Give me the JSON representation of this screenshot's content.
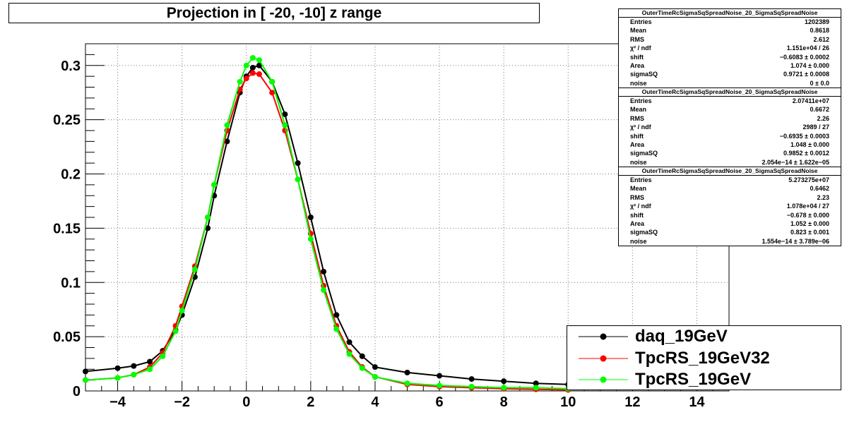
{
  "title": "Projection in [ -20, -10] z range",
  "stat_boxes": [
    {
      "name": "OuterTimeRcSigmaSqSpreadNoise_20_SigmaSqSpreadNoise",
      "rows": [
        {
          "k": "Entries",
          "v": "1202389"
        },
        {
          "k": "Mean",
          "v": "0.8618"
        },
        {
          "k": "RMS",
          "v": "2.612"
        },
        {
          "k": "χ² / ndf",
          "v": "1.151e+04 / 26"
        },
        {
          "k": "shift",
          "v": "−0.6083 ± 0.0002"
        },
        {
          "k": "Area",
          "v": "1.074 ± 0.000"
        },
        {
          "k": "sigmaSQ",
          "v": "0.9721 ± 0.0008"
        },
        {
          "k": "noise",
          "v": "0 ± 0.0"
        }
      ]
    },
    {
      "name": "OuterTimeRcSigmaSqSpreadNoise_20_SigmaSqSpreadNoise",
      "rows": [
        {
          "k": "Entries",
          "v": "2.07411e+07"
        },
        {
          "k": "Mean",
          "v": "0.6672"
        },
        {
          "k": "RMS",
          "v": "2.26"
        },
        {
          "k": "χ² / ndf",
          "v": "2989 / 27"
        },
        {
          "k": "shift",
          "v": "−0.6935 ± 0.0003"
        },
        {
          "k": "Area",
          "v": "1.048 ± 0.000"
        },
        {
          "k": "sigmaSQ",
          "v": "0.9852 ± 0.0012"
        },
        {
          "k": "noise",
          "v": "2.054e−14 ± 1.622e−05"
        }
      ]
    },
    {
      "name": "OuterTimeRcSigmaSqSpreadNoise_20_SigmaSqSpreadNoise",
      "rows": [
        {
          "k": "Entries",
          "v": "5.273275e+07"
        },
        {
          "k": "Mean",
          "v": "0.6462"
        },
        {
          "k": "RMS",
          "v": "2.23"
        },
        {
          "k": "χ² / ndf",
          "v": "1.078e+04 / 27"
        },
        {
          "k": "shift",
          "v": "−0.678 ± 0.000"
        },
        {
          "k": "Area",
          "v": "1.052 ± 0.000"
        },
        {
          "k": "sigmaSQ",
          "v": "0.823 ± 0.001"
        },
        {
          "k": "noise",
          "v": "1.554e−14 ± 3.789e−06"
        }
      ]
    }
  ],
  "legend": [
    {
      "label": "daq_19GeV",
      "color": "#000000"
    },
    {
      "label": "TpcRS_19GeV32",
      "color": "#ff0000"
    },
    {
      "label": "TpcRS_19GeV",
      "color": "#00ff00"
    }
  ],
  "chart_data": {
    "type": "scatter",
    "title": "Projection in [ -20, -10] z range",
    "xlabel": "",
    "ylabel": "",
    "xlim": [
      -5,
      15
    ],
    "ylim": [
      0,
      0.32
    ],
    "x_ticks": [
      -4,
      -2,
      0,
      2,
      4,
      6,
      8,
      10,
      12,
      14
    ],
    "y_ticks": [
      0,
      0.05,
      0.1,
      0.15,
      0.2,
      0.25,
      0.3
    ],
    "x_tick_labels": [
      "−4",
      "−2",
      "0",
      "2",
      "4",
      "6",
      "8",
      "10",
      "12",
      "14"
    ],
    "y_tick_labels": [
      "0",
      "0.05",
      "0.1",
      "0.15",
      "0.2",
      "0.25",
      "0.3"
    ],
    "grid": true,
    "legend_position": "bottom-right",
    "series": [
      {
        "name": "daq_19GeV",
        "color": "#000000",
        "x": [
          -5,
          -4,
          -3.5,
          -3,
          -2.6,
          -2.2,
          -2,
          -1.6,
          -1.2,
          -1,
          -0.6,
          -0.2,
          0,
          0.2,
          0.4,
          0.8,
          1.2,
          1.6,
          2,
          2.4,
          2.8,
          3.2,
          3.6,
          4,
          5,
          6,
          7,
          8,
          9,
          10
        ],
        "y": [
          0.018,
          0.021,
          0.023,
          0.027,
          0.037,
          0.056,
          0.07,
          0.105,
          0.15,
          0.18,
          0.23,
          0.275,
          0.29,
          0.298,
          0.3,
          0.285,
          0.255,
          0.21,
          0.16,
          0.11,
          0.07,
          0.045,
          0.032,
          0.022,
          0.017,
          0.014,
          0.011,
          0.009,
          0.007,
          0.006
        ]
      },
      {
        "name": "TpcRS_19GeV32",
        "color": "#ff0000",
        "x": [
          -5,
          -4,
          -3.5,
          -3,
          -2.6,
          -2.2,
          -2,
          -1.6,
          -1.2,
          -1,
          -0.6,
          -0.2,
          0,
          0.2,
          0.4,
          0.8,
          1.2,
          1.6,
          2,
          2.4,
          2.8,
          3.2,
          3.6,
          4,
          5,
          6,
          7,
          8,
          9,
          10
        ],
        "y": [
          0.01,
          0.012,
          0.015,
          0.022,
          0.035,
          0.06,
          0.078,
          0.115,
          0.16,
          0.19,
          0.24,
          0.278,
          0.288,
          0.293,
          0.292,
          0.275,
          0.24,
          0.195,
          0.145,
          0.097,
          0.06,
          0.036,
          0.022,
          0.013,
          0.006,
          0.004,
          0.003,
          0.002,
          0.0015,
          0.001
        ]
      },
      {
        "name": "TpcRS_19GeV",
        "color": "#00ff00",
        "x": [
          -5,
          -4,
          -3.5,
          -3,
          -2.6,
          -2.2,
          -2,
          -1.6,
          -1.2,
          -1,
          -0.6,
          -0.2,
          0,
          0.2,
          0.4,
          0.8,
          1.2,
          1.6,
          2,
          2.4,
          2.8,
          3.2,
          3.6,
          4,
          5,
          6,
          7,
          8,
          9,
          10
        ],
        "y": [
          0.01,
          0.012,
          0.015,
          0.02,
          0.032,
          0.055,
          0.074,
          0.112,
          0.16,
          0.19,
          0.245,
          0.285,
          0.3,
          0.307,
          0.305,
          0.285,
          0.245,
          0.195,
          0.14,
          0.093,
          0.057,
          0.034,
          0.021,
          0.013,
          0.007,
          0.005,
          0.004,
          0.003,
          0.003,
          0.002
        ]
      }
    ]
  }
}
